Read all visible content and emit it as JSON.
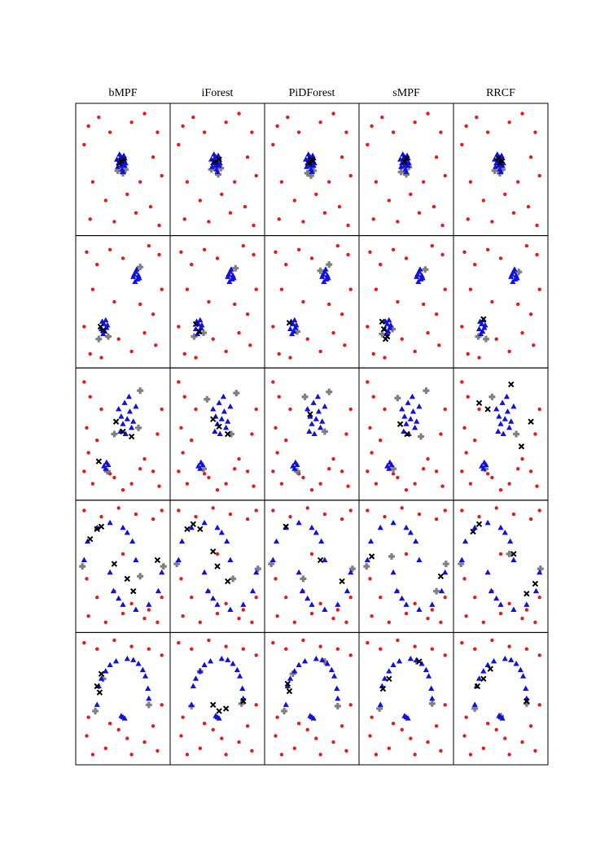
{
  "chart_data": {
    "type": "scatter-grid",
    "columns": [
      "bMPF",
      "iForest",
      "PiDForest",
      "sMPF",
      "RRCF"
    ],
    "xlim": [
      0,
      100
    ],
    "ylim": [
      0,
      100
    ],
    "outlier_color": "#e41a1c",
    "inlier_color": "#1010e0",
    "missed_color": "#808080",
    "flagged_color": "#000000",
    "rows": [
      {
        "outliers": {
          "x": [
            5,
            10,
            22,
            35,
            60,
            75,
            90,
            85,
            70,
            95,
            15,
            30,
            12,
            40,
            65,
            82,
            92,
            55
          ],
          "y": [
            70,
            85,
            92,
            80,
            88,
            95,
            80,
            60,
            40,
            45,
            40,
            25,
            10,
            8,
            15,
            20,
            5,
            30
          ]
        },
        "inliers": {
          "x": [
            44,
            46,
            48,
            50,
            52,
            45,
            49,
            51,
            47,
            53,
            43,
            50,
            46,
            48,
            52,
            49
          ],
          "y": [
            52,
            58,
            60,
            56,
            53,
            55,
            50,
            61,
            57,
            55,
            58,
            48,
            62,
            53,
            59,
            54
          ]
        },
        "panels": [
          {
            "missed": {
              "x": [
                44,
                53,
                50
              ],
              "y": [
                49,
                50,
                47
              ]
            },
            "flagged": {
              "x": [
                48,
                51,
                46
              ],
              "y": [
                57,
                58,
                55
              ]
            }
          },
          {
            "missed": {
              "x": [
                43,
                54,
                51
              ],
              "y": [
                50,
                51,
                46
              ]
            },
            "flagged": {
              "x": [
                47,
                52
              ],
              "y": [
                56,
                58
              ]
            }
          },
          {
            "missed": {
              "x": [
                45,
                52,
                49
              ],
              "y": [
                47,
                49,
                45
              ]
            },
            "flagged": {
              "x": [
                49,
                51,
                47
              ],
              "y": [
                58,
                57,
                55
              ]
            }
          },
          {
            "missed": {
              "x": [
                44,
                53,
                50
              ],
              "y": [
                48,
                52,
                46
              ]
            },
            "flagged": {
              "x": [
                48,
                50
              ],
              "y": [
                56,
                59
              ]
            }
          },
          {
            "missed": {
              "x": [
                43,
                52,
                49
              ],
              "y": [
                49,
                50,
                47
              ]
            },
            "flagged": {
              "x": [
                47,
                51,
                49
              ],
              "y": [
                59,
                57,
                55
              ]
            }
          }
        ]
      },
      {
        "outliers": {
          "x": [
            8,
            20,
            35,
            50,
            80,
            92,
            95,
            15,
            40,
            70,
            85,
            5,
            45,
            60,
            88,
            25,
            12,
            75
          ],
          "y": [
            90,
            80,
            92,
            85,
            95,
            88,
            60,
            60,
            50,
            48,
            40,
            30,
            20,
            10,
            15,
            5,
            8,
            25
          ]
        },
        "inliers": {
          "x": [
            62,
            65,
            68,
            64,
            67,
            66,
            63,
            69,
            25,
            28,
            31,
            27,
            30,
            26,
            29,
            32
          ],
          "y": [
            70,
            74,
            71,
            66,
            68,
            76,
            72,
            69,
            28,
            32,
            29,
            24,
            35,
            34,
            26,
            31
          ]
        },
        "panels": [
          {
            "missed": {
              "x": [
                70,
                22,
                33
              ],
              "y": [
                78,
                20,
                22
              ]
            },
            "flagged": {
              "x": [
                24,
                27
              ],
              "y": [
                30,
                27
              ]
            }
          },
          {
            "missed": {
              "x": [
                71,
                23,
                34
              ],
              "y": [
                77,
                22,
                25
              ]
            },
            "flagged": {
              "x": [
                25,
                29
              ],
              "y": [
                32,
                26
              ]
            }
          },
          {
            "missed": {
              "x": [
                60,
                70,
                33
              ],
              "y": [
                75,
                80,
                26
              ]
            },
            "flagged": {
              "x": [
                24
              ],
              "y": [
                33
              ]
            }
          },
          {
            "missed": {
              "x": [
                72,
                22,
                34
              ],
              "y": [
                76,
                24,
                28
              ]
            },
            "flagged": {
              "x": [
                22,
                24,
                28,
                26
              ],
              "y": [
                34,
                28,
                22,
                20
              ]
            }
          },
          {
            "missed": {
              "x": [
                71,
                33,
                24
              ],
              "y": [
                74,
                20,
                22
              ]
            },
            "flagged": {
              "x": [
                30
              ],
              "y": [
                36
              ]
            }
          }
        ]
      },
      {
        "outliers": {
          "x": [
            5,
            12,
            25,
            8,
            20,
            95,
            90,
            10,
            40,
            75,
            85,
            60,
            50,
            92,
            15,
            35,
            70,
            5
          ],
          "y": [
            92,
            80,
            70,
            55,
            45,
            70,
            50,
            35,
            15,
            30,
            20,
            10,
            5,
            8,
            10,
            18,
            22,
            20
          ]
        },
        "inliers": {
          "x": [
            45,
            52,
            58,
            62,
            50,
            55,
            60,
            48,
            65,
            57,
            53,
            47,
            28,
            31,
            30,
            33
          ],
          "y": [
            70,
            75,
            68,
            60,
            58,
            62,
            55,
            64,
            72,
            80,
            50,
            52,
            24,
            27,
            22,
            25
          ]
        },
        "panels": [
          {
            "missed": {
              "x": [
                70,
                40,
                68,
                32
              ],
              "y": [
                85,
                50,
                55,
                20
              ]
            },
            "flagged": {
              "x": [
                42,
                50,
                60,
                22
              ],
              "y": [
                60,
                52,
                48,
                28
              ]
            }
          },
          {
            "missed": {
              "x": [
                72,
                38,
                66,
                34
              ],
              "y": [
                83,
                78,
                50,
                22
              ]
            },
            "flagged": {
              "x": [
                45,
                52,
                62
              ],
              "y": [
                62,
                56,
                50
              ]
            }
          },
          {
            "missed": {
              "x": [
                70,
                42,
                65,
                33
              ],
              "y": [
                84,
                80,
                52,
                20
              ]
            },
            "flagged": {
              "x": [
                48
              ],
              "y": [
                66
              ]
            }
          },
          {
            "missed": {
              "x": [
                73,
                40,
                67,
                35
              ],
              "y": [
                85,
                79,
                48,
                22
              ]
            },
            "flagged": {
              "x": [
                43,
                51
              ],
              "y": [
                58,
                50
              ]
            }
          },
          {
            "missed": {
              "x": [
                40,
                68,
                32
              ],
              "y": [
                80,
                50,
                22
              ]
            },
            "flagged": {
              "x": [
                25,
                35,
                62,
                85,
                74
              ],
              "y": [
                75,
                70,
                90,
                60,
                40
              ]
            }
          }
        ]
      },
      {
        "outliers": {
          "x": [
            5,
            25,
            45,
            65,
            85,
            95,
            10,
            30,
            50,
            75,
            90,
            8,
            20,
            40,
            60,
            80,
            95,
            50
          ],
          "y": [
            95,
            90,
            97,
            92,
            88,
            95,
            10,
            5,
            12,
            8,
            5,
            40,
            25,
            30,
            20,
            15,
            25,
            60
          ]
        },
        "inliers": {
          "x": [
            65,
            61,
            50,
            35,
            20,
            9,
            5,
            55,
            35,
            39,
            50,
            65,
            80,
            91,
            95,
            45
          ],
          "y": [
            55,
            70,
            81,
            85,
            81,
            70,
            55,
            77,
            45,
            30,
            19,
            15,
            19,
            30,
            45,
            24
          ]
        },
        "panels": [
          {
            "missed": {
              "x": [
                3,
                97,
                70
              ],
              "y": [
                50,
                50,
                42
              ]
            },
            "flagged": {
              "x": [
                12,
                20,
                25,
                40,
                55,
                62,
                90
              ],
              "y": [
                72,
                80,
                82,
                52,
                40,
                30,
                55
              ]
            }
          },
          {
            "missed": {
              "x": [
                3,
                97,
                68
              ],
              "y": [
                52,
                48,
                40
              ]
            },
            "flagged": {
              "x": [
                15,
                22,
                30,
                45,
                50,
                62
              ],
              "y": [
                80,
                84,
                80,
                62,
                50,
                38
              ]
            }
          },
          {
            "missed": {
              "x": [
                3,
                97,
                40
              ],
              "y": [
                52,
                48,
                40
              ]
            },
            "flagged": {
              "x": [
                20,
                60,
                85
              ],
              "y": [
                82,
                55,
                38
              ]
            }
          },
          {
            "missed": {
              "x": [
                4,
                33,
                96,
                85
              ],
              "y": [
                50,
                58,
                52,
                30
              ]
            },
            "flagged": {
              "x": [
                10,
                90
              ],
              "y": [
                58,
                42
              ]
            }
          },
          {
            "missed": {
              "x": [
                4,
                60,
                96
              ],
              "y": [
                52,
                60,
                48
              ]
            },
            "flagged": {
              "x": [
                18,
                25,
                65,
                80,
                90
              ],
              "y": [
                78,
                84,
                60,
                28,
                36
              ]
            }
          }
        ]
      },
      {
        "outliers": {
          "x": [
            5,
            20,
            40,
            60,
            80,
            95,
            8,
            15,
            30,
            45,
            60,
            75,
            90,
            10,
            35,
            55,
            85,
            95
          ],
          "y": [
            95,
            90,
            97,
            92,
            90,
            85,
            20,
            5,
            10,
            25,
            5,
            15,
            8,
            35,
            30,
            18,
            28,
            45
          ]
        },
        "inliers": {
          "x": [
            20,
            22,
            30,
            42,
            55,
            68,
            76,
            80,
            50,
            48,
            52,
            25,
            35,
            62,
            73,
            79
          ],
          "y": [
            45,
            60,
            72,
            80,
            82,
            78,
            68,
            50,
            35,
            36,
            34,
            66,
            77,
            81,
            73,
            58
          ]
        },
        "panels": [
          {
            "missed": {
              "x": [
                18,
                27,
                80
              ],
              "y": [
                40,
                66,
                45
              ]
            },
            "flagged": {
              "x": [
                20,
                23,
                25
              ],
              "y": [
                60,
                55,
                70
              ]
            }
          },
          {
            "missed": {
              "x": [
                20,
                30,
                78
              ],
              "y": [
                44,
                72,
                46
              ]
            },
            "flagged": {
              "x": [
                45,
                52,
                60,
                80
              ],
              "y": [
                45,
                40,
                42,
                48
              ]
            }
          },
          {
            "missed": {
              "x": [
                18,
                28,
                80,
                65
              ],
              "y": [
                40,
                70,
                44,
                80
              ]
            },
            "flagged": {
              "x": [
                22,
                24
              ],
              "y": [
                62,
                56
              ]
            }
          },
          {
            "missed": {
              "x": [
                19,
                62,
                80
              ],
              "y": [
                42,
                80,
                46
              ]
            },
            "flagged": {
              "x": [
                23,
                30,
                65
              ],
              "y": [
                58,
                66,
                80
              ]
            }
          },
          {
            "missed": {
              "x": [
                20,
                50,
                80
              ],
              "y": [
                42,
                36,
                46
              ]
            },
            "flagged": {
              "x": [
                23,
                30,
                38,
                80
              ],
              "y": [
                60,
                66,
                74,
                48
              ]
            }
          }
        ]
      }
    ]
  }
}
